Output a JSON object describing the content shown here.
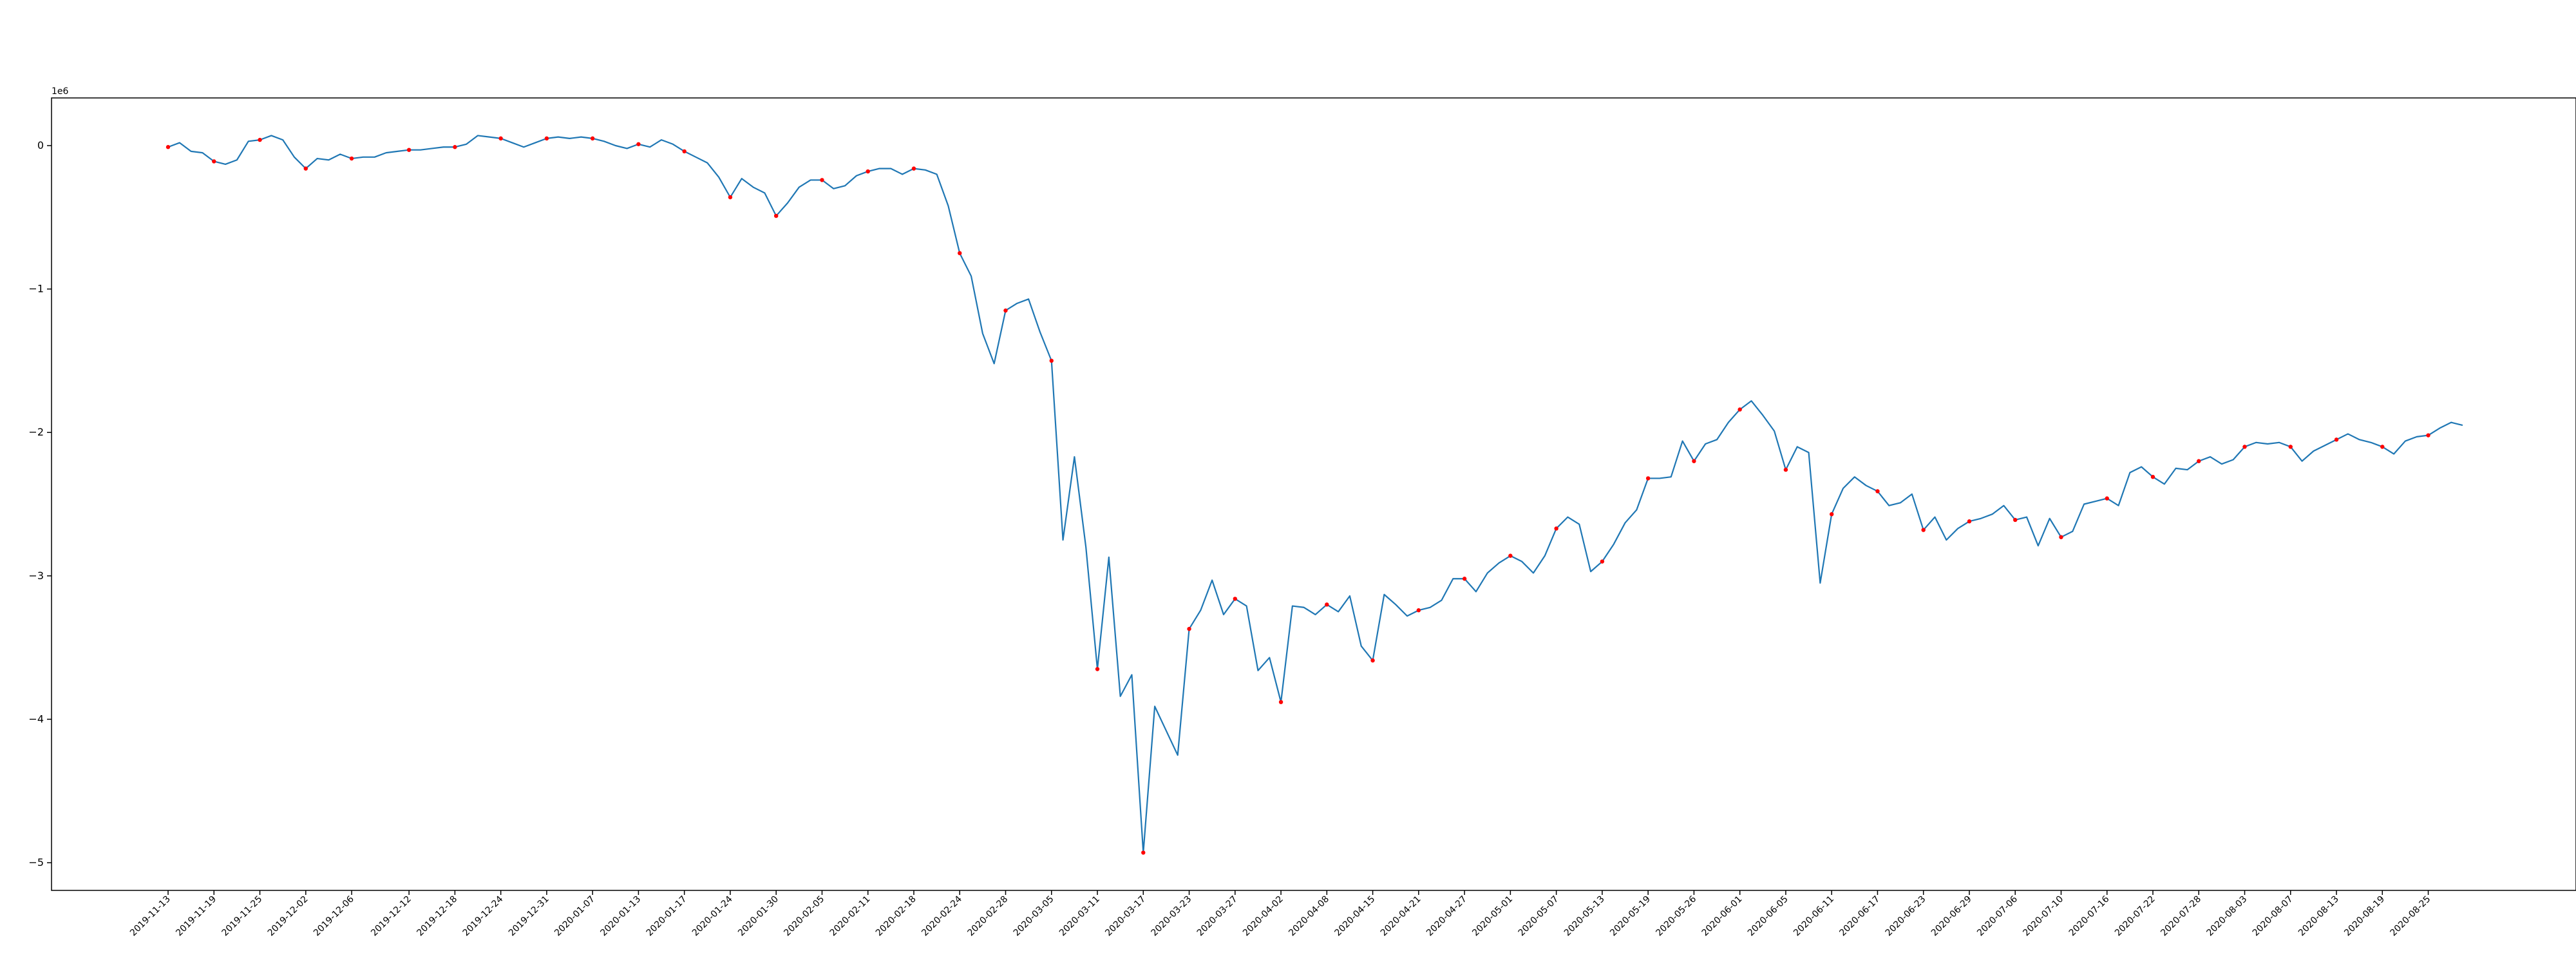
{
  "chart_data": {
    "type": "line",
    "title": "",
    "xlabel": "",
    "ylabel": "",
    "offset_text": "1e6",
    "x_tick_labels": [
      "2019-11-13",
      "2019-11-19",
      "2019-11-25",
      "2019-12-02",
      "2019-12-06",
      "2019-12-12",
      "2019-12-18",
      "2019-12-24",
      "2019-12-31",
      "2020-01-07",
      "2020-01-13",
      "2020-01-17",
      "2020-01-24",
      "2020-01-30",
      "2020-02-05",
      "2020-02-11",
      "2020-02-18",
      "2020-02-24",
      "2020-02-28",
      "2020-03-05",
      "2020-03-11",
      "2020-03-17",
      "2020-03-23",
      "2020-03-27",
      "2020-04-02",
      "2020-04-08",
      "2020-04-15",
      "2020-04-21",
      "2020-04-27",
      "2020-05-01",
      "2020-05-07",
      "2020-05-13",
      "2020-05-19",
      "2020-05-26",
      "2020-06-01",
      "2020-06-05",
      "2020-06-11",
      "2020-06-17",
      "2020-06-23",
      "2020-06-29",
      "2020-07-06",
      "2020-07-10",
      "2020-07-16",
      "2020-07-22",
      "2020-07-28",
      "2020-08-03",
      "2020-08-07",
      "2020-08-13",
      "2020-08-19",
      "2020-08-25"
    ],
    "y_ticks": [
      0,
      -1,
      -2,
      -3,
      -4,
      -5
    ],
    "y_tick_labels": [
      "0",
      "−1",
      "−2",
      "−3",
      "−4",
      "−5"
    ],
    "ylim": [
      -5.15,
      0.32
    ],
    "y_scale": 1000000,
    "grid": false,
    "legend": "none",
    "line_color": "#1f77b4",
    "marker_color": "#ff0000",
    "series": [
      {
        "values": [
          -0.01,
          0.02,
          -0.04,
          -0.05,
          -0.11,
          -0.13,
          -0.1,
          0.03,
          0.04,
          0.07,
          0.04,
          -0.08,
          -0.16,
          -0.09,
          -0.1,
          -0.06,
          -0.09,
          -0.08,
          -0.08,
          -0.05,
          -0.04,
          -0.03,
          -0.03,
          -0.02,
          -0.01,
          -0.01,
          0.01,
          0.07,
          0.06,
          0.05,
          0.02,
          -0.01,
          0.02,
          0.05,
          0.06,
          0.05,
          0.06,
          0.05,
          0.03,
          0.0,
          -0.02,
          0.01,
          -0.01,
          0.04,
          0.01,
          -0.04,
          -0.08,
          -0.12,
          -0.22,
          -0.36,
          -0.23,
          -0.29,
          -0.33,
          -0.49,
          -0.4,
          -0.29,
          -0.24,
          -0.24,
          -0.3,
          -0.28,
          -0.21,
          -0.18,
          -0.16,
          -0.16,
          -0.2,
          -0.16,
          -0.17,
          -0.2,
          -0.42,
          -0.75,
          -0.91,
          -1.31,
          -1.52,
          -1.15,
          -1.1,
          -1.07,
          -1.3,
          -1.5,
          -2.75,
          -2.17,
          -2.8,
          -3.65,
          -2.87,
          -3.84,
          -3.69,
          -4.93,
          -3.91,
          -4.08,
          -4.25,
          -3.37,
          -3.24,
          -3.03,
          -3.27,
          -3.16,
          -3.21,
          -3.66,
          -3.57,
          -3.88,
          -3.21,
          -3.22,
          -3.27,
          -3.2,
          -3.25,
          -3.14,
          -3.49,
          -3.59,
          -3.13,
          -3.2,
          -3.28,
          -3.24,
          -3.22,
          -3.17,
          -3.02,
          -3.02,
          -3.11,
          -2.98,
          -2.91,
          -2.86,
          -2.9,
          -2.98,
          -2.86,
          -2.67,
          -2.59,
          -2.64,
          -2.97,
          -2.9,
          -2.78,
          -2.63,
          -2.54,
          -2.32,
          -2.32,
          -2.31,
          -2.06,
          -2.2,
          -2.08,
          -2.05,
          -1.93,
          -1.84,
          -1.78,
          -1.88,
          -1.99,
          -2.26,
          -2.1,
          -2.14,
          -3.05,
          -2.57,
          -2.39,
          -2.31,
          -2.37,
          -2.41,
          -2.51,
          -2.49,
          -2.43,
          -2.68,
          -2.59,
          -2.75,
          -2.67,
          -2.62,
          -2.6,
          -2.57,
          -2.51,
          -2.61,
          -2.59,
          -2.79,
          -2.6,
          -2.73,
          -2.69,
          -2.5,
          -2.48,
          -2.46,
          -2.51,
          -2.28,
          -2.24,
          -2.31,
          -2.36,
          -2.25,
          -2.26,
          -2.2,
          -2.17,
          -2.22,
          -2.19,
          -2.1,
          -2.07,
          -2.08,
          -2.07,
          -2.1,
          -2.2,
          -2.13,
          -2.09,
          -2.05,
          -2.01,
          -2.05,
          -2.07,
          -2.1,
          -2.15,
          -2.06,
          -2.03,
          -2.02,
          -1.97,
          -1.93,
          -1.95
        ],
        "marked_indices": [
          0,
          4,
          8,
          12,
          16,
          21,
          25,
          29,
          33,
          37,
          41,
          45,
          49,
          53,
          57,
          61,
          65,
          69,
          73,
          77,
          81,
          85,
          89,
          93,
          97,
          101,
          105,
          109,
          113,
          117,
          121,
          125,
          129,
          133,
          137,
          141,
          145,
          149,
          153,
          157,
          161,
          165,
          169,
          173,
          177,
          181,
          185,
          189,
          193,
          197
        ]
      }
    ]
  }
}
